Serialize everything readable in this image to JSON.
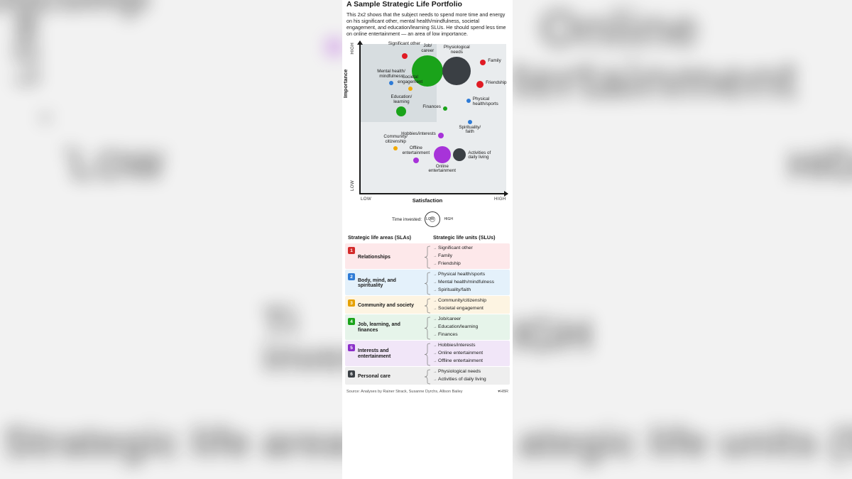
{
  "title": "A Sample Strategic Life Portfolio",
  "subtitle": "This 2x2 shows that the subject needs to spend more time and energy on his significant other, mental health/mindfulness, societal engagement, and education/learning SLUs. He should spend less time on online entertainment — an area of low importance.",
  "chart": {
    "type": "bubble-2x2",
    "x_axis": {
      "label": "Satisfaction",
      "low": "LOW",
      "high": "HIGH"
    },
    "y_axis": {
      "label": "Importance",
      "low": "LOW",
      "high": "HIGH"
    },
    "plot_bg": "#e9ecee",
    "quadrant_highlight_bg": "#d7dde0",
    "axis_color": "#1a1a1a",
    "xlim": [
      0,
      100
    ],
    "ylim": [
      0,
      100
    ],
    "bubbles": [
      {
        "id": "sig-other",
        "label": "Significant other",
        "x": 30,
        "y": 92,
        "r": 4,
        "color": "#e01b24",
        "label_side": "top",
        "category": 1
      },
      {
        "id": "job",
        "label": "Job/ career",
        "x": 46,
        "y": 82,
        "r": 22,
        "color": "#1aa31a",
        "label_side": "top",
        "category": 4
      },
      {
        "id": "phys-needs",
        "label": "Physiological needs",
        "x": 66,
        "y": 82,
        "r": 20,
        "color": "#3a3f44",
        "label_side": "top",
        "category": 6
      },
      {
        "id": "family",
        "label": "Family",
        "x": 84,
        "y": 88,
        "r": 4,
        "color": "#e01b24",
        "label_side": "right",
        "category": 1
      },
      {
        "id": "mental",
        "label": "Mental health/ mindfulness",
        "x": 21,
        "y": 74,
        "r": 3,
        "color": "#2e7bd6",
        "label_side": "top",
        "category": 2
      },
      {
        "id": "societal",
        "label": "Societal engagement",
        "x": 34,
        "y": 70,
        "r": 3,
        "color": "#f2a900",
        "label_side": "top",
        "category": 3
      },
      {
        "id": "friendship",
        "label": "Friendship",
        "x": 82,
        "y": 73,
        "r": 5,
        "color": "#e01b24",
        "label_side": "right",
        "category": 1
      },
      {
        "id": "phys-health",
        "label": "Physical health/sports",
        "x": 74,
        "y": 62,
        "r": 3,
        "color": "#2e7bd6",
        "label_side": "right",
        "category": 2
      },
      {
        "id": "education",
        "label": "Education/ learning",
        "x": 28,
        "y": 55,
        "r": 7,
        "color": "#1aa31a",
        "label_side": "top",
        "category": 4
      },
      {
        "id": "finances",
        "label": "Finances",
        "x": 58,
        "y": 57,
        "r": 3,
        "color": "#1aa31a",
        "label_side": "left",
        "category": 4
      },
      {
        "id": "spirituality",
        "label": "Spirituality/ faith",
        "x": 75,
        "y": 48,
        "r": 3,
        "color": "#2e7bd6",
        "label_side": "bottom",
        "category": 2
      },
      {
        "id": "hobbies",
        "label": "Hobbies/interests",
        "x": 55,
        "y": 39,
        "r": 4,
        "color": "#a733d9",
        "label_side": "left",
        "category": 5
      },
      {
        "id": "community",
        "label": "Community/ citizenship",
        "x": 24,
        "y": 30,
        "r": 3,
        "color": "#f2a900",
        "label_side": "top",
        "category": 3
      },
      {
        "id": "offline",
        "label": "Offline entertainment",
        "x": 38,
        "y": 22,
        "r": 4,
        "color": "#a733d9",
        "label_side": "top",
        "category": 5
      },
      {
        "id": "online",
        "label": "Online entertainment",
        "x": 56,
        "y": 26,
        "r": 12,
        "color": "#a733d9",
        "label_side": "bottom",
        "category": 5
      },
      {
        "id": "adl",
        "label": "Activities of daily living",
        "x": 68,
        "y": 26,
        "r": 9,
        "color": "#3a3f44",
        "label_side": "right",
        "category": 6
      }
    ]
  },
  "legend": {
    "label": "Time invested:",
    "low": "LOW",
    "high": "HIGH",
    "outer_d": 22,
    "inner_d": 10
  },
  "table": {
    "header_left": "Strategic life areas (SLAs)",
    "header_right": "Strategic life units (SLUs)",
    "rows": [
      {
        "n": "1",
        "name": "Relationships",
        "bg": "#fde8ea",
        "num_bg": "#d32a2a",
        "slus": [
          "Significant other",
          "Family",
          "Friendship"
        ]
      },
      {
        "n": "2",
        "name": "Body, mind, and spirituality",
        "bg": "#e4f1fb",
        "num_bg": "#2e7bd6",
        "slus": [
          "Physical health/sports",
          "Mental health/mindfulness",
          "Spirituality/faith"
        ]
      },
      {
        "n": "3",
        "name": "Community and society",
        "bg": "#fdf4e2",
        "num_bg": "#e6a100",
        "slus": [
          "Community/citizenship",
          "Societal engagement"
        ]
      },
      {
        "n": "4",
        "name": "Job, learning, and finances",
        "bg": "#e6f4ea",
        "num_bg": "#1aa31a",
        "slus": [
          "Job/career",
          "Education/learning",
          "Finances"
        ]
      },
      {
        "n": "5",
        "name": "Interests and entertainment",
        "bg": "#f1e6f8",
        "num_bg": "#8b2fc9",
        "slus": [
          "Hobbies/interests",
          "Online entertainment",
          "Offline entertainment"
        ]
      },
      {
        "n": "6",
        "name": "Personal care",
        "bg": "#eeeeee",
        "num_bg": "#3a3f44",
        "slus": [
          "Physiological needs",
          "Activities of daily living"
        ]
      }
    ]
  },
  "source": {
    "text": "Source: Analyses by Rainer Strack, Susanne Dyrchs, Allison Bailey",
    "brand": "♥HBR"
  },
  "bg_words": {
    "w1": "LOW",
    "w2": "Online",
    "w3": "tertainment",
    "w4": "LOW",
    "w5": "HIGH",
    "w6": "Strategic life areas (SL",
    "w7": "ategic life units (SLUs)",
    "w8": "Ti",
    "w9": "invest",
    "w10": "IGH",
    "w11": "Uncomp"
  }
}
